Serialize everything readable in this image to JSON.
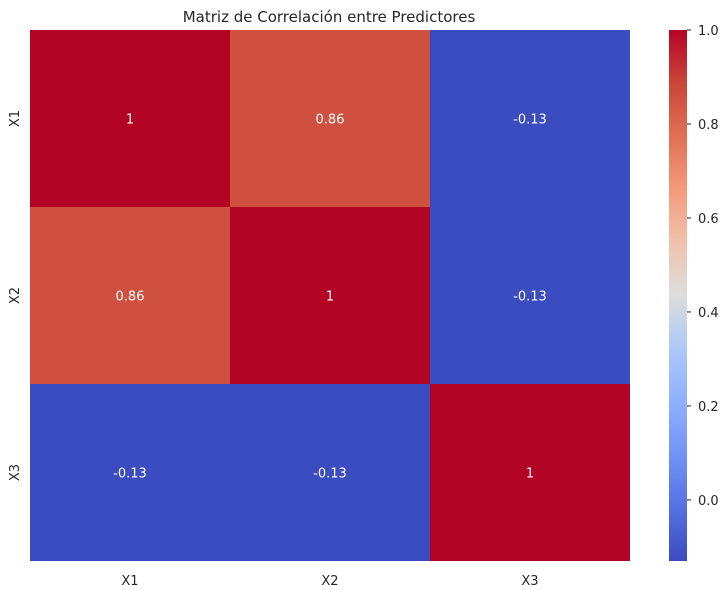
{
  "chart_data": {
    "type": "heatmap",
    "title": "Matriz de Correlación entre Predictores",
    "xlabel": "",
    "ylabel": "",
    "x_categories": [
      "X1",
      "X2",
      "X3"
    ],
    "y_categories": [
      "X1",
      "X2",
      "X3"
    ],
    "values": [
      [
        1,
        0.86,
        -0.13
      ],
      [
        0.86,
        1,
        -0.13
      ],
      [
        -0.13,
        -0.13,
        1
      ]
    ],
    "cell_labels": [
      [
        "1",
        "0.86",
        "-0.13"
      ],
      [
        "0.86",
        "1",
        "-0.13"
      ],
      [
        "-0.13",
        "-0.13",
        "1"
      ]
    ],
    "colormap": "coolwarm",
    "colorbar": {
      "vmin": -0.13,
      "vmax": 1.0,
      "ticks": [
        0.0,
        0.2,
        0.4,
        0.6,
        0.8,
        1.0
      ],
      "tick_labels": [
        "0.0",
        "0.2",
        "0.4",
        "0.6",
        "0.8",
        "1.0"
      ]
    },
    "colors": {
      "low": "#3b4cc0",
      "mid": "#dddddd",
      "high": "#b40426"
    },
    "grid": false,
    "legend": "colorbar-right"
  }
}
